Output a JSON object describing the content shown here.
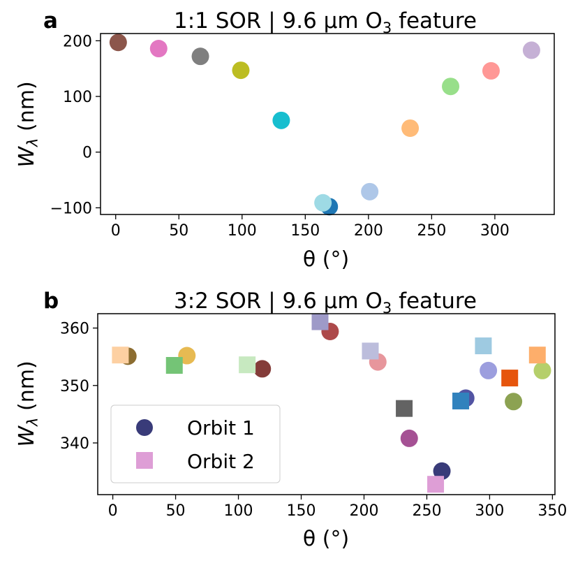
{
  "panel_a": {
    "letter": "a",
    "title": "1:1 SOR | 9.6 μm O",
    "title_sub": "3",
    "title_tail": " feature",
    "xlabel": "θ (°)",
    "ylabel_main": "W",
    "ylabel_sub": "λ",
    "ylabel_tail": " (nm)"
  },
  "panel_b": {
    "letter": "b",
    "title": "3:2 SOR | 9.6 μm O",
    "title_sub": "3",
    "title_tail": " feature",
    "xlabel": "θ (°)",
    "ylabel_main": "W",
    "ylabel_sub": "λ",
    "ylabel_tail": " (nm)",
    "legend": {
      "orbit1": "Orbit 1",
      "orbit2": "Orbit 2"
    }
  },
  "chart_data": [
    {
      "type": "scatter",
      "title": "1:1 SOR | 9.6 μm O3 feature",
      "xlabel": "θ (°)",
      "ylabel": "Wλ (nm)",
      "xlim": [
        -12,
        347
      ],
      "ylim": [
        -112,
        213
      ],
      "xticks": [
        0,
        50,
        100,
        150,
        200,
        250,
        300
      ],
      "yticks": [
        -100,
        0,
        100,
        200
      ],
      "ytick_labels": [
        "−100",
        "0",
        "100",
        "200"
      ],
      "grid": false,
      "series": [
        {
          "points": [
            {
              "x": 2,
              "y": 197,
              "color": "#8c564b"
            },
            {
              "x": 34,
              "y": 186,
              "color": "#e377c2"
            },
            {
              "x": 67,
              "y": 172,
              "color": "#7f7f7f"
            },
            {
              "x": 99,
              "y": 147,
              "color": "#bcbd22"
            },
            {
              "x": 131,
              "y": 57,
              "color": "#17becf"
            },
            {
              "x": 169,
              "y": -98,
              "color": "#1f77b4"
            },
            {
              "x": 164,
              "y": -91,
              "color": "#9edae5"
            },
            {
              "x": 201,
              "y": -71,
              "color": "#aec7e8"
            },
            {
              "x": 233,
              "y": 43,
              "color": "#ffbb78"
            },
            {
              "x": 265,
              "y": 118,
              "color": "#98df8a"
            },
            {
              "x": 297,
              "y": 146,
              "color": "#ff9896"
            },
            {
              "x": 329,
              "y": 183,
              "color": "#c5b0d5"
            }
          ]
        }
      ]
    },
    {
      "type": "scatter",
      "title": "3:2 SOR | 9.6 μm O3 feature",
      "xlabel": "θ (°)",
      "ylabel": "Wλ (nm)",
      "xlim": [
        -12,
        352
      ],
      "ylim": [
        331,
        362.5
      ],
      "xticks": [
        0,
        50,
        100,
        150,
        200,
        250,
        300,
        350
      ],
      "yticks": [
        340,
        350,
        360
      ],
      "ytick_labels": [
        "340",
        "350",
        "360"
      ],
      "grid": false,
      "legend_position": "lower left",
      "series": [
        {
          "name": "Orbit 1",
          "marker": "circle",
          "legend_color": "#393b79",
          "points": [
            {
              "x": 12,
              "y": 355.1,
              "color": "#8c6d31"
            },
            {
              "x": 59,
              "y": 355.2,
              "color": "#e7ba52"
            },
            {
              "x": 119,
              "y": 352.9,
              "color": "#843c39"
            },
            {
              "x": 173,
              "y": 359.4,
              "color": "#ad494a"
            },
            {
              "x": 211,
              "y": 354.1,
              "color": "#e7969c"
            },
            {
              "x": 236,
              "y": 340.8,
              "color": "#a55194"
            },
            {
              "x": 262,
              "y": 335.1,
              "color": "#393b79"
            },
            {
              "x": 281,
              "y": 347.8,
              "color": "#5254a3"
            },
            {
              "x": 299,
              "y": 352.6,
              "color": "#9c9ede"
            },
            {
              "x": 319,
              "y": 347.2,
              "color": "#8ca252"
            },
            {
              "x": 342,
              "y": 352.6,
              "color": "#b5cf6b"
            }
          ]
        },
        {
          "name": "Orbit 2",
          "marker": "square",
          "legend_color": "#de9ed6",
          "points": [
            {
              "x": 6,
              "y": 355.3,
              "color": "#fdd0a2"
            },
            {
              "x": 49,
              "y": 353.5,
              "color": "#74c476"
            },
            {
              "x": 107,
              "y": 353.6,
              "color": "#c7e9c0"
            },
            {
              "x": 165,
              "y": 361.1,
              "color": "#9e9ac8"
            },
            {
              "x": 205,
              "y": 356.0,
              "color": "#bcbddc"
            },
            {
              "x": 232,
              "y": 346.0,
              "color": "#636363"
            },
            {
              "x": 257,
              "y": 332.8,
              "color": "#de9ed6"
            },
            {
              "x": 277,
              "y": 347.3,
              "color": "#3182bd"
            },
            {
              "x": 295,
              "y": 356.9,
              "color": "#9ecae1"
            },
            {
              "x": 316,
              "y": 351.3,
              "color": "#e6550d"
            },
            {
              "x": 338,
              "y": 355.3,
              "color": "#fdae6b"
            }
          ]
        }
      ]
    }
  ]
}
